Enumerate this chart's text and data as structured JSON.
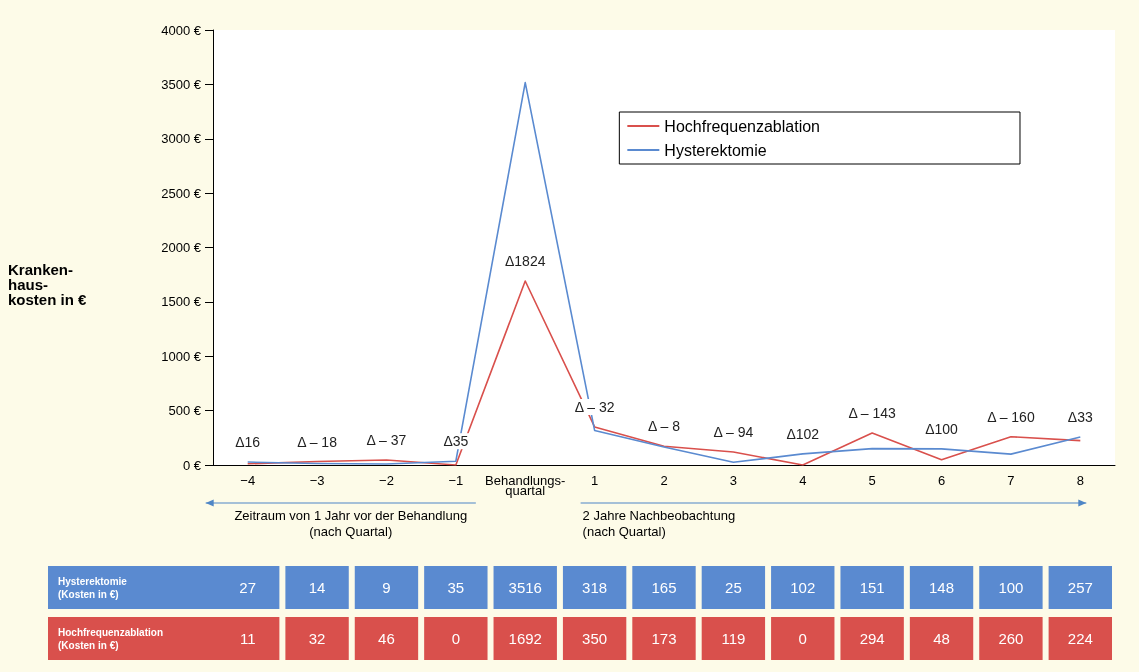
{
  "chart_data": {
    "type": "line",
    "ylabel": "Kranken-\nhaus-\nkosten in €",
    "categories": [
      "−4",
      "−3",
      "−2",
      "−1",
      "Behandlungs-\nquartal",
      "1",
      "2",
      "3",
      "4",
      "5",
      "6",
      "7",
      "8"
    ],
    "series": [
      {
        "name": "Hochfrequenzablation",
        "color": "#d9504c",
        "values": [
          11,
          32,
          46,
          0,
          1692,
          350,
          173,
          119,
          0,
          294,
          48,
          260,
          224
        ]
      },
      {
        "name": "Hysterektomie",
        "color": "#5a8ad0",
        "values": [
          27,
          14,
          9,
          35,
          3516,
          318,
          165,
          25,
          102,
          151,
          148,
          100,
          257
        ]
      }
    ],
    "ylim": [
      0,
      4000
    ],
    "yticks": [
      {
        "value": 0,
        "label": "0 €"
      },
      {
        "value": 500,
        "label": "500 €"
      },
      {
        "value": 1000,
        "label": "1000 €"
      },
      {
        "value": 1500,
        "label": "1500 €"
      },
      {
        "value": 2000,
        "label": "2000 €"
      },
      {
        "value": 2500,
        "label": "2500 €"
      },
      {
        "value": 3000,
        "label": "3000 €"
      },
      {
        "value": 3500,
        "label": "3500 €"
      },
      {
        "value": 4000,
        "label": "4000 €"
      }
    ],
    "legend": "top right",
    "data_labels": true,
    "grid": false,
    "annotations": [
      "Zeitraum von 1 Jahr vor der Behandlung\n(nach Quartal)",
      "2 Jahre Nachbeobachtung\n(nach Quartal)",
      "(Kosten in €)",
      "(Kosten in €)",
      {
        "text": "Δ16",
        "x": "−4",
        "y": 27
      },
      {
        "text": "Δ – 18",
        "x": "−3",
        "y": 32
      },
      {
        "text": "Δ – 37",
        "x": "−2",
        "y": 46
      },
      {
        "text": "Δ35",
        "x": "−1",
        "y": 35
      },
      {
        "text": "Δ1824",
        "x": "Behandlungs-\nquartal",
        "y": 1692
      },
      {
        "text": "Δ – 32",
        "x": "1",
        "y": 350
      },
      {
        "text": "Δ – 8",
        "x": "2",
        "y": 173
      },
      {
        "text": "Δ – 94",
        "x": "3",
        "y": 119
      },
      {
        "text": "Δ102",
        "x": "4",
        "y": 102
      },
      {
        "text": "Δ – 143",
        "x": "5",
        "y": 294
      },
      {
        "text": "Δ100",
        "x": "6",
        "y": 148
      },
      {
        "text": "Δ – 160",
        "x": "7",
        "y": 260
      },
      {
        "text": "Δ33",
        "x": "8",
        "y": 257
      }
    ]
  }
}
